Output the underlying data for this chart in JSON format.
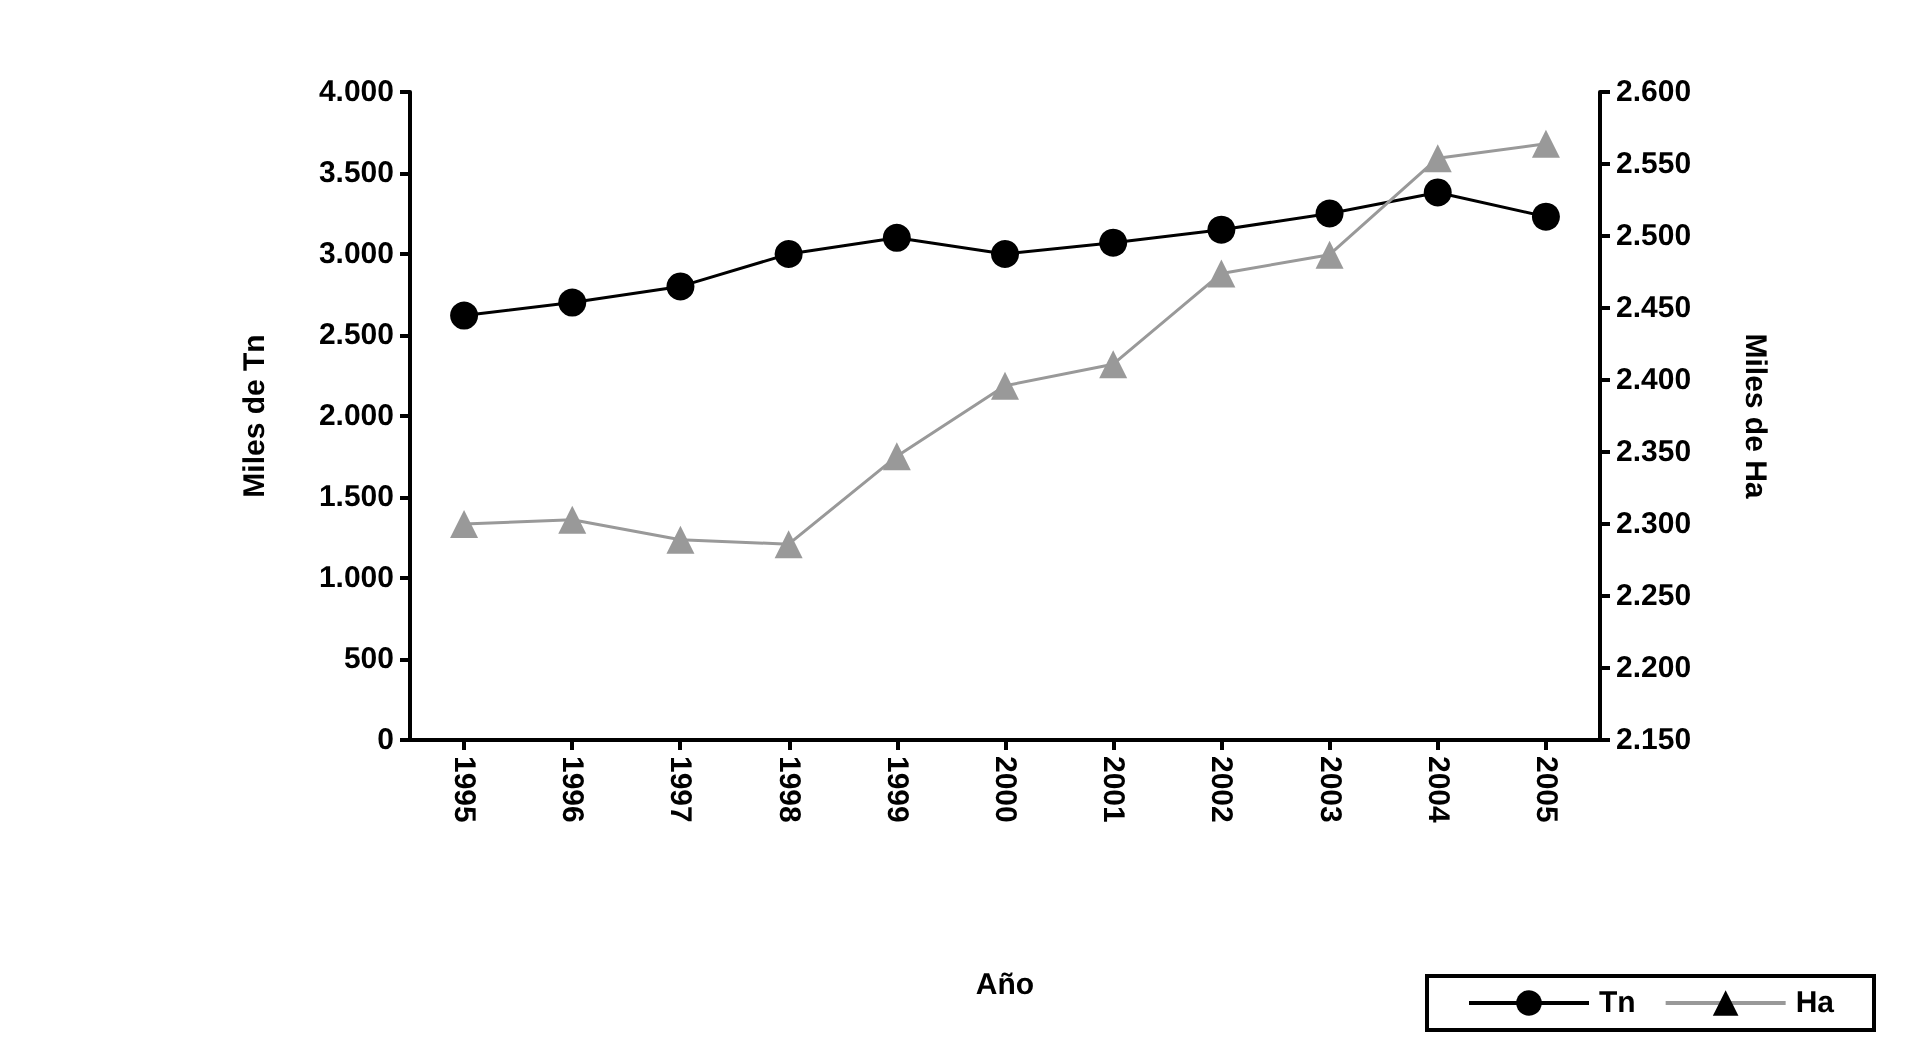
{
  "chart_data": {
    "type": "line",
    "xlabel": "Año",
    "ylabel": "Miles de Tn",
    "y2label": "Miles de Ha",
    "categories": [
      "1995",
      "1996",
      "1997",
      "1998",
      "1999",
      "2000",
      "2001",
      "2002",
      "2003",
      "2004",
      "2005"
    ],
    "series": [
      {
        "name": "Tn",
        "color": "#000000",
        "marker": "circle",
        "values": [
          2620,
          2700,
          2800,
          3000,
          3100,
          3000,
          3070,
          3150,
          3250,
          3380,
          3230
        ]
      },
      {
        "name": "Ha",
        "color": "#999999",
        "marker": "triangle",
        "axis": "y2",
        "values": [
          2300,
          2303,
          2289,
          2286,
          2347,
          2396,
          2411,
          2474,
          2487,
          2554,
          2564
        ]
      }
    ],
    "ylim": [
      0,
      4000
    ],
    "yticks": [
      {
        "value": 0,
        "label": "0"
      },
      {
        "value": 500,
        "label": "500"
      },
      {
        "value": 1000,
        "label": "1.000"
      },
      {
        "value": 1500,
        "label": "1.500"
      },
      {
        "value": 2000,
        "label": "2.000"
      },
      {
        "value": 2500,
        "label": "2.500"
      },
      {
        "value": 3000,
        "label": "3.000"
      },
      {
        "value": 3500,
        "label": "3.500"
      },
      {
        "value": 4000,
        "label": "4.000"
      }
    ],
    "y2lim": [
      2150,
      2600
    ],
    "y2ticks": [
      {
        "value": 2150,
        "label": "2.150"
      },
      {
        "value": 2200,
        "label": "2.200"
      },
      {
        "value": 2250,
        "label": "2.250"
      },
      {
        "value": 2300,
        "label": "2.300"
      },
      {
        "value": 2350,
        "label": "2.350"
      },
      {
        "value": 2400,
        "label": "2.400"
      },
      {
        "value": 2450,
        "label": "2.450"
      },
      {
        "value": 2500,
        "label": "2.500"
      },
      {
        "value": 2550,
        "label": "2.550"
      },
      {
        "value": 2600,
        "label": "2.600"
      }
    ],
    "grid": false,
    "legend": "bottom right",
    "line_style": "solid"
  }
}
